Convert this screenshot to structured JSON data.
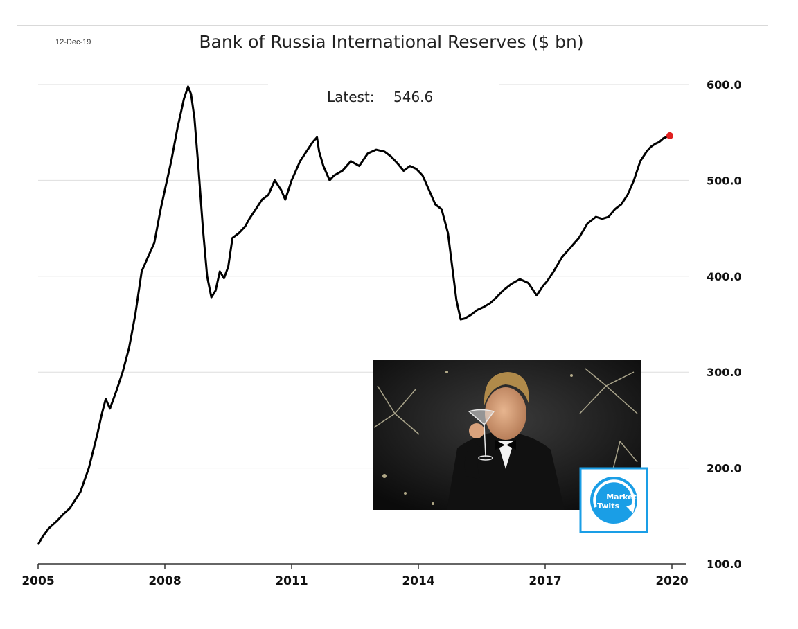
{
  "chart_data": {
    "type": "line",
    "title": "Bank of Russia International Reserves ($ bn)",
    "date_label": "12-Dec-19",
    "annotation": {
      "label": "Latest:",
      "value": "546.6"
    },
    "latest_point": {
      "x": 2019.95,
      "y": 546.6,
      "color": "#e02020"
    },
    "line_color": "#000000",
    "ylim": [
      100,
      600
    ],
    "y_ticks": [
      "100.0",
      "200.0",
      "300.0",
      "400.0",
      "500.0",
      "600.0"
    ],
    "y_tick_values": [
      100,
      200,
      300,
      400,
      500,
      600
    ],
    "xlim": [
      2005,
      2020
    ],
    "x_ticks": [
      "2005",
      "2008",
      "2011",
      "2014",
      "2017",
      "2020"
    ],
    "x_tick_values": [
      2005,
      2008,
      2011,
      2014,
      2017,
      2020
    ],
    "grid": "horizontal",
    "series": [
      {
        "x": [
          2005.0,
          2005.1,
          2005.25,
          2005.45,
          2005.6,
          2005.75,
          2006.0,
          2006.2,
          2006.4,
          2006.5,
          2006.6,
          2006.7,
          2006.85,
          2007.0,
          2007.15,
          2007.3,
          2007.45,
          2007.6,
          2007.75,
          2007.9,
          2008.0,
          2008.15,
          2008.3,
          2008.45,
          2008.55,
          2008.62,
          2008.7,
          2008.8,
          2008.9,
          2009.0,
          2009.1,
          2009.2,
          2009.3,
          2009.4,
          2009.5,
          2009.6,
          2009.75,
          2009.9,
          2010.0,
          2010.15,
          2010.3,
          2010.45,
          2010.6,
          2010.75,
          2010.85,
          2011.0,
          2011.2,
          2011.35,
          2011.5,
          2011.6,
          2011.65,
          2011.75,
          2011.9,
          2012.0,
          2012.2,
          2012.4,
          2012.6,
          2012.8,
          2013.0,
          2013.2,
          2013.35,
          2013.5,
          2013.65,
          2013.8,
          2013.95,
          2014.1,
          2014.25,
          2014.4,
          2014.55,
          2014.7,
          2014.8,
          2014.9,
          2015.0,
          2015.1,
          2015.25,
          2015.4,
          2015.55,
          2015.7,
          2015.85,
          2016.0,
          2016.2,
          2016.4,
          2016.6,
          2016.8,
          2016.95,
          2017.05,
          2017.2,
          2017.4,
          2017.6,
          2017.8,
          2018.0,
          2018.2,
          2018.35,
          2018.5,
          2018.65,
          2018.8,
          2018.95,
          2019.1,
          2019.25,
          2019.4,
          2019.5,
          2019.6,
          2019.7,
          2019.8,
          2019.95
        ],
        "y": [
          120,
          128,
          137,
          145,
          152,
          158,
          175,
          200,
          235,
          255,
          272,
          262,
          280,
          300,
          325,
          360,
          405,
          420,
          435,
          470,
          490,
          520,
          555,
          585,
          598,
          590,
          565,
          510,
          450,
          400,
          378,
          385,
          405,
          398,
          410,
          440,
          445,
          452,
          460,
          470,
          480,
          485,
          500,
          490,
          480,
          500,
          520,
          530,
          540,
          545,
          530,
          515,
          500,
          505,
          510,
          520,
          515,
          528,
          532,
          530,
          525,
          518,
          510,
          515,
          512,
          505,
          490,
          475,
          470,
          445,
          410,
          375,
          355,
          356,
          360,
          365,
          368,
          372,
          378,
          385,
          392,
          397,
          393,
          380,
          390,
          395,
          405,
          420,
          430,
          440,
          455,
          462,
          460,
          462,
          470,
          475,
          485,
          500,
          520,
          530,
          535,
          538,
          540,
          544,
          546.6
        ]
      }
    ]
  },
  "overlay": {
    "logo_line1": "Market",
    "logo_line2": "Twits",
    "logo_color": "#1a9ee6"
  }
}
